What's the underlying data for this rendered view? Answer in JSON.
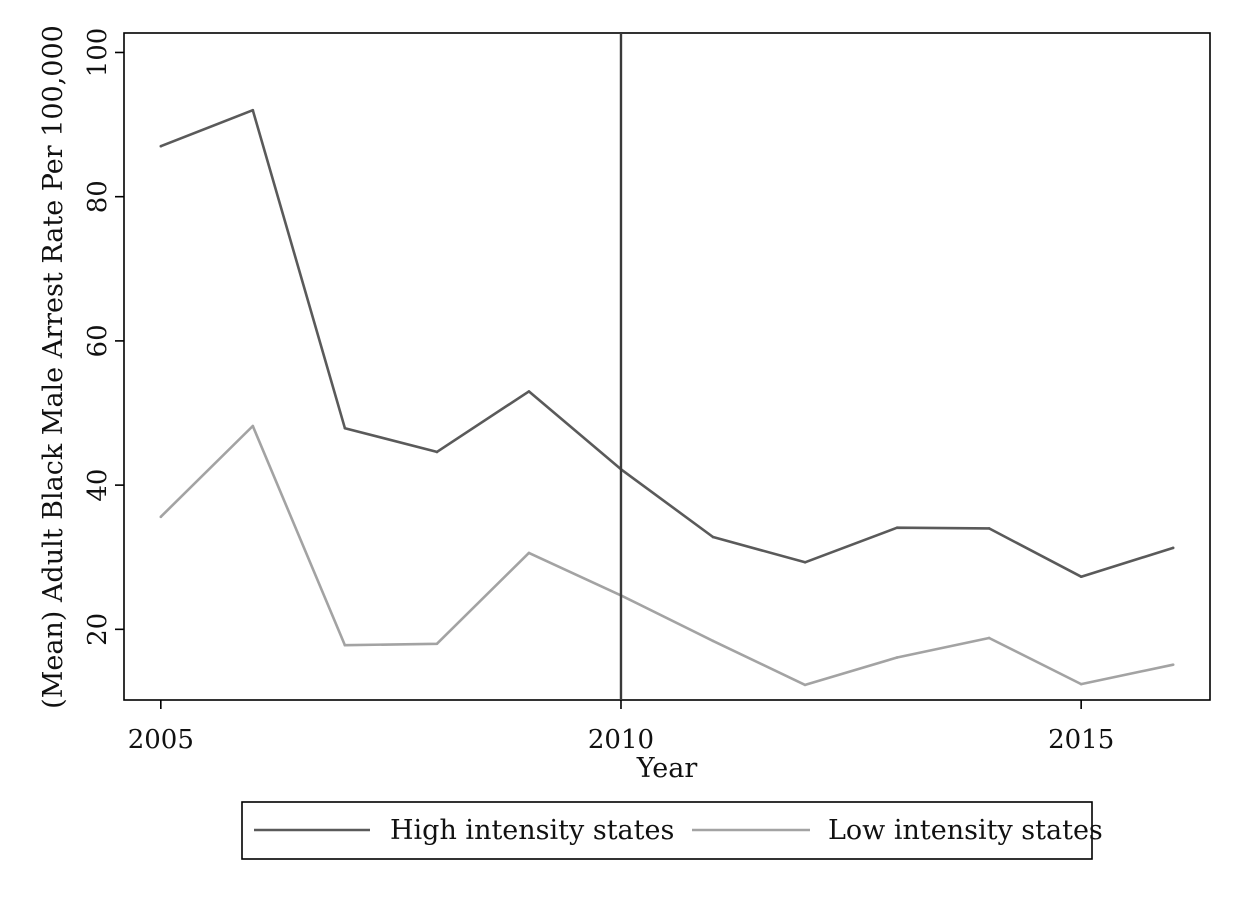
{
  "chart_data": {
    "type": "line",
    "title": "",
    "xlabel": "Year",
    "ylabel": "(Mean) Adult Black Male Arrest Rate Per 100,000",
    "x": [
      2005,
      2006,
      2007,
      2008,
      2009,
      2010,
      2011,
      2012,
      2013,
      2014,
      2015,
      2016
    ],
    "xlim": [
      2004.6,
      2016.4
    ],
    "ylim": [
      10.2,
      102.7
    ],
    "x_ticks": [
      2005,
      2010,
      2015
    ],
    "y_ticks": [
      20,
      40,
      60,
      80,
      100
    ],
    "vline": 2010,
    "grid": false,
    "legend_position": "bottom",
    "series": [
      {
        "name": "High intensity states",
        "color": "#5a5a5a",
        "values": [
          87.0,
          92.0,
          47.9,
          44.6,
          53.0,
          42.2,
          32.8,
          29.3,
          34.1,
          34.0,
          27.3,
          31.3
        ]
      },
      {
        "name": "Low intensity states",
        "color": "#a3a3a3",
        "values": [
          35.6,
          48.2,
          17.8,
          18.0,
          30.6,
          24.7,
          18.4,
          12.3,
          16.1,
          18.8,
          12.4,
          15.1
        ]
      }
    ]
  }
}
